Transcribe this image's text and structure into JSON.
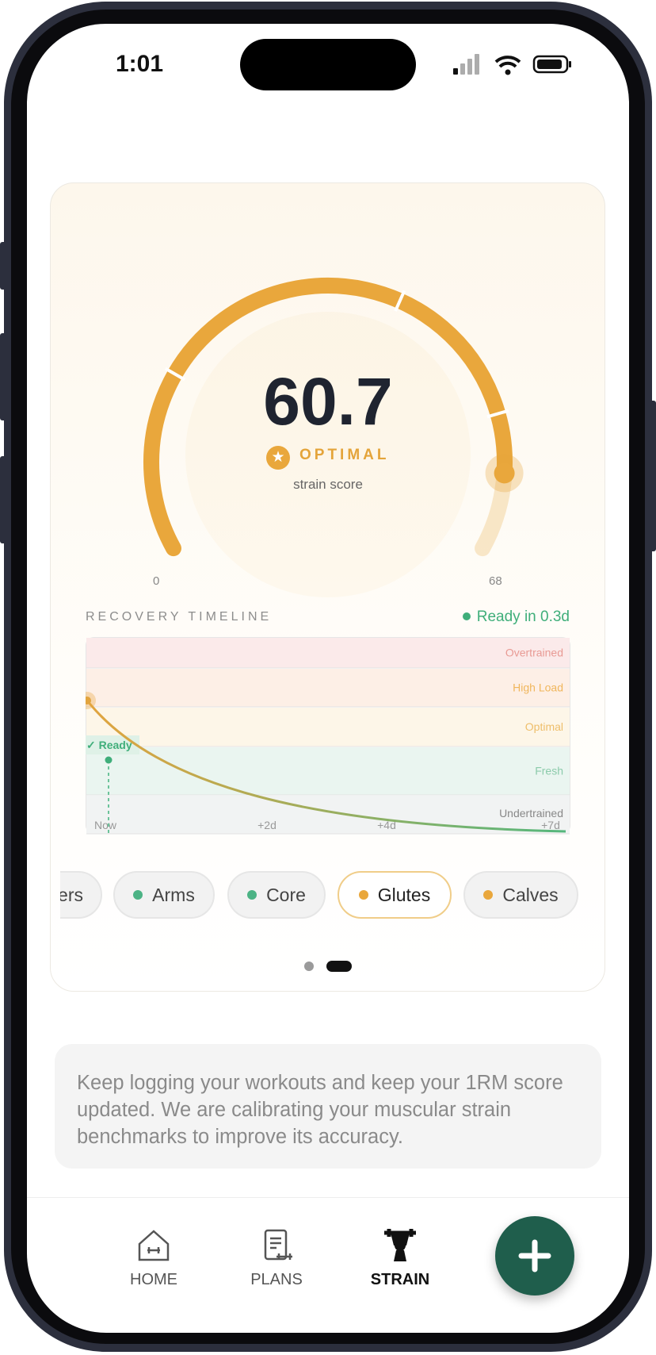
{
  "status_bar": {
    "time": "1:01"
  },
  "gauge": {
    "value": 60.7,
    "min": 0,
    "max": 68,
    "status": "OPTIMAL",
    "caption": "strain score",
    "color": "#e9a73c"
  },
  "timeline": {
    "title": "RECOVERY TIMELINE",
    "ready": "Ready in 0.3d",
    "marker": "✓ Ready",
    "zones": [
      "Overtrained",
      "High Load",
      "Optimal",
      "Fresh",
      "Undertrained"
    ],
    "x_labels": [
      "Now",
      "+2d",
      "+4d",
      "+7d"
    ]
  },
  "muscles": {
    "selected": 3,
    "items": [
      {
        "label": "ers",
        "dot": null
      },
      {
        "label": "Arms",
        "dot": "#4cb385"
      },
      {
        "label": "Core",
        "dot": "#4cb385"
      },
      {
        "label": "Glutes",
        "dot": "#e9a73c"
      },
      {
        "label": "Calves",
        "dot": "#e9a73c"
      }
    ]
  },
  "info": {
    "text": "Keep logging your workouts and keep your 1RM score updated. We are calibrating your muscular strain benchmarks to improve its accuracy."
  },
  "nav": {
    "active": 2,
    "items": [
      "HOME",
      "PLANS",
      "STRAIN"
    ]
  }
}
